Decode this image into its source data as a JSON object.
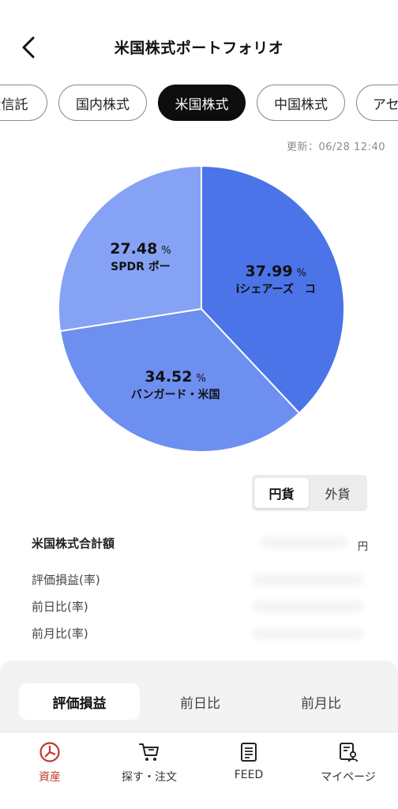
{
  "header": {
    "title": "米国株式ポートフォリオ"
  },
  "tabs": [
    {
      "label": "投信託"
    },
    {
      "label": "国内株式"
    },
    {
      "label": "米国株式"
    },
    {
      "label": "中国株式"
    },
    {
      "label": "アセ"
    }
  ],
  "updated": "更新：06/28 12:40",
  "chart_data": {
    "type": "pie",
    "slices": [
      {
        "value": 37.99,
        "unit": "%",
        "label": "iシェアーズ　コ",
        "color": "#4a74e8"
      },
      {
        "value": 34.52,
        "unit": "%",
        "label": "バンガード・米国",
        "color": "#6d8ff0"
      },
      {
        "value": 27.48,
        "unit": "%",
        "label": "SPDR ポー",
        "color": "#86a2f5"
      }
    ]
  },
  "currency": {
    "jpy": "円貨",
    "foreign": "外貨"
  },
  "summary": {
    "title": "米国株式合計額",
    "unit": "円",
    "rows": [
      {
        "label": "評価損益(率)"
      },
      {
        "label": "前日比(率)"
      },
      {
        "label": "前月比(率)"
      }
    ]
  },
  "segments": [
    {
      "label": "評価損益"
    },
    {
      "label": "前日比"
    },
    {
      "label": "前月比"
    }
  ],
  "nav": [
    {
      "label": "資産",
      "icon": "pie-chart-icon"
    },
    {
      "label": "探す・注文",
      "icon": "cart-icon"
    },
    {
      "label": "FEED",
      "icon": "document-icon"
    },
    {
      "label": "マイページ",
      "icon": "profile-icon"
    }
  ],
  "colors": {
    "accent": "#c03a2b",
    "active_tab": "#0d0d0d"
  }
}
